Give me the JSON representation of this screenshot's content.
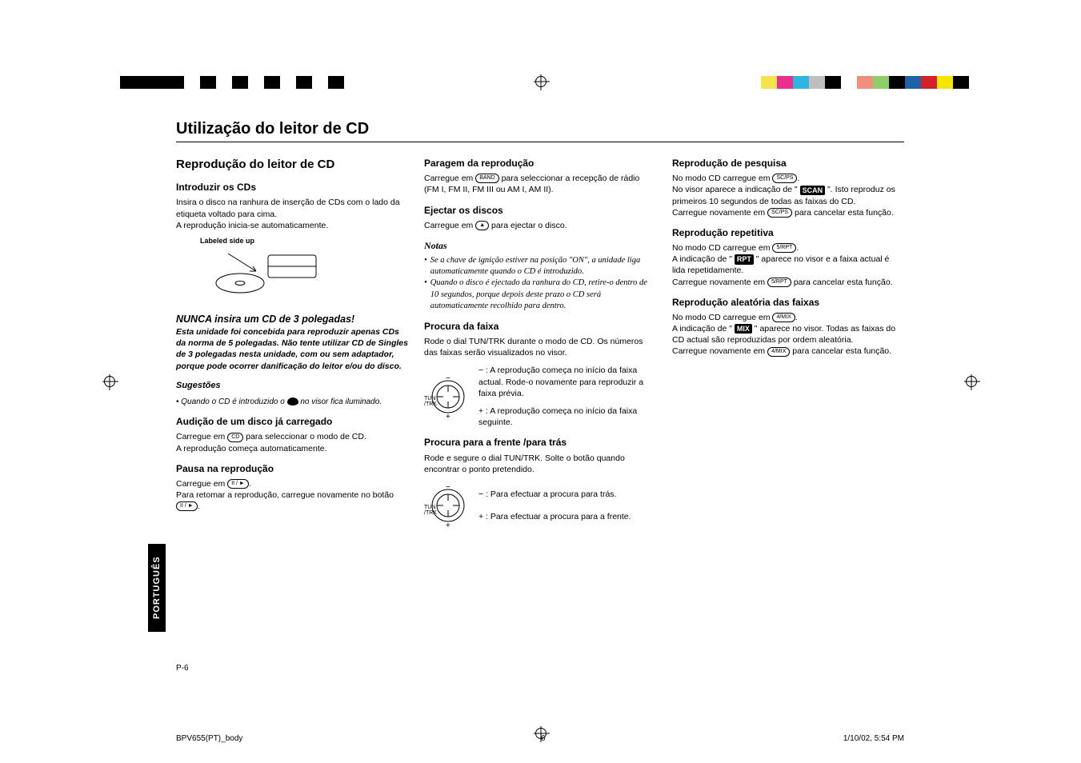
{
  "topbar": {
    "left_colors": [
      "#000000",
      "#000000",
      "#000000",
      "#000000",
      "#ffffff",
      "#000000",
      "#ffffff",
      "#000000",
      "#ffffff",
      "#000000",
      "#ffffff",
      "#000000",
      "#ffffff",
      "#000000"
    ],
    "right_colors": [
      "#f6e44a",
      "#e8318f",
      "#2fb5e0",
      "#bfbfbf",
      "#000000",
      "#ffffff",
      "#f0907c",
      "#8fcf6b",
      "#000000",
      "#1f62a6",
      "#d42028",
      "#f3e600",
      "#000000",
      "#ffffff"
    ]
  },
  "side_tab": "PORTUGUÊS",
  "page_number": "P-6",
  "footer": {
    "file": "BPV655(PT)_body",
    "page": "6",
    "datetime": "1/10/02, 5:54 PM"
  },
  "title": "Utilização do leitor de CD",
  "col1": {
    "h2": "Reprodução do leitor de CD",
    "intro_h3": "Introduzir os CDs",
    "intro_p1": "Insira o disco na ranhura de inserção de CDs com o lado da etiqueta voltado para cima.",
    "intro_p2": "A reprodução inicia-se automaticamente.",
    "fig_label": "Labeled side up",
    "warn_h": "NUNCA insira um CD de 3 polegadas!",
    "warn_b": "Esta unidade foi concebida para reproduzir apenas CDs da norma de 5 polegadas. Não tente utilizar CD de Singles de 3 polegadas nesta unidade, com ou sem adaptador, porque pode ocorrer danificação do leitor e/ou do disco.",
    "sug_h": "Sugestões",
    "sug_b_pre": "• Quando o CD é introduzido o ",
    "sug_b_post": " no visor fica iluminado.",
    "aud_h3": "Audição de um disco já carregado",
    "aud_p1_pre": "Carregue em ",
    "aud_btn": "CD",
    "aud_p1_post": " para seleccionar o modo de CD.",
    "aud_p2": "A reprodução começa automaticamente.",
    "pausa_h3": "Pausa na reprodução",
    "pausa_p1_pre": "Carregue em ",
    "pausa_btn": "II / ►",
    "pausa_p1_post": ".",
    "pausa_p2_pre": "Para retomar a reprodução, carregue novamente no botão ",
    "pausa_p2_btn": "II / ►",
    "pausa_p2_post": "."
  },
  "col2": {
    "paragem_h3": "Paragem da reprodução",
    "paragem_p_pre": "Carregue em ",
    "paragem_btn": "BAND",
    "paragem_p_post": " para seleccionar a recepção de rádio (FM I, FM II, FM III ou AM I, AM II).",
    "eject_h3": "Ejectar os discos",
    "eject_p_pre": "Carregue em ",
    "eject_btn": "▲",
    "eject_p_post": " para ejectar o disco.",
    "notas_h": "Notas",
    "nota1": "Se a chave de ignição estiver na posição \"ON\", a unidade liga automaticamente quando o CD é introduzido.",
    "nota2": "Quando o disco é ejectado da ranhura do CD, retire-o dentro de 10 segundos, porque depois deste prazo o CD será automaticamente recolhido para dentro.",
    "procura_h3": "Procura da faixa",
    "procura_p": "Rode o dial TUN/TRK durante o modo de CD. Os números das faixas serão visualizados no visor.",
    "dial_minus": "− : A reprodução começa no início da faixa actual. Rode-o novamente para reproduzir a faixa prévia.",
    "dial_plus": "+ : A reprodução começa no início da faixa seguinte.",
    "procura_ft_h3": "Procura para a frente /para trás",
    "procura_ft_p": "Rode e segure o dial TUN/TRK. Solte o botão quando encontrar o ponto pretendido.",
    "dial_minus2": "− : Para efectuar a procura para trás.",
    "dial_plus2": "+ : Para efectuar a procura para a frente."
  },
  "col3": {
    "pesq_h3": "Reprodução de pesquisa",
    "pesq_p1_pre": "No modo CD carregue em ",
    "pesq_btn1": "SC/PS",
    "pesq_p1_post": ".",
    "pesq_p2_pre": "No visor aparece a indicação de \" ",
    "pesq_badge": "SCAN",
    "pesq_p2_post": " \". Isto reproduz os primeiros 10 segundos de todas as faixas do CD.",
    "pesq_p3_pre": "Carregue novamente em ",
    "pesq_btn2": "SC/PS",
    "pesq_p3_post": " para cancelar esta função.",
    "rep_h3": "Reprodução repetitiva",
    "rep_p1_pre": "No modo CD carregue em ",
    "rep_btn1": "5/RPT",
    "rep_p1_post": ".",
    "rep_p2_pre": "A indicação de \" ",
    "rep_badge": "RPT",
    "rep_p2_post": " \" aparece no visor e a faixa actual é lida repetidamente.",
    "rep_p3_pre": "Carregue novamente em ",
    "rep_btn2": "5/RPT",
    "rep_p3_post": " para cancelar esta função.",
    "mix_h3": "Reprodução aleatória das faixas",
    "mix_p1_pre": "No modo CD carregue em ",
    "mix_btn1": "4/MIX",
    "mix_p1_post": ".",
    "mix_p2_pre": "A indicação de \" ",
    "mix_badge": "MIX",
    "mix_p2_post": " \" aparece no visor. Todas as faixas do CD actual são reproduzidas por ordem aleatória.",
    "mix_p3_pre": "Carregue novamente em ",
    "mix_btn2": "4/MIX",
    "mix_p3_post": " para cancelar esta função."
  }
}
